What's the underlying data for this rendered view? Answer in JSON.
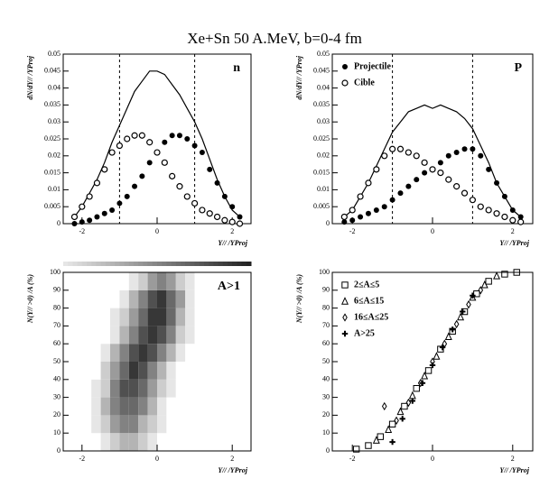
{
  "title": "Xe+Sn 50 A.MeV, b=0-4 fm",
  "chart_data": [
    {
      "type": "line",
      "label": "n",
      "xlabel": "Y// /YProj",
      "ylabel": "dN/dY// /YProj",
      "xlim": [
        -2.5,
        2.5
      ],
      "ylim": [
        0,
        0.05
      ],
      "xticks": [
        -2,
        0,
        2
      ],
      "yticks": [
        0,
        0.005,
        0.01,
        0.015,
        0.02,
        0.025,
        0.03,
        0.035,
        0.04,
        0.045,
        0.05
      ],
      "vlines": [
        -1,
        1
      ],
      "x": [
        -2.2,
        -2.0,
        -1.8,
        -1.6,
        -1.4,
        -1.2,
        -1.0,
        -0.8,
        -0.6,
        -0.4,
        -0.2,
        0,
        0.2,
        0.4,
        0.6,
        0.8,
        1.0,
        1.2,
        1.4,
        1.6,
        1.8,
        2.0,
        2.2
      ],
      "series": [
        {
          "style": "step",
          "color": "#000000",
          "values": [
            0.002,
            0.005,
            0.009,
            0.013,
            0.018,
            0.024,
            0.029,
            0.034,
            0.039,
            0.042,
            0.045,
            0.045,
            0.044,
            0.041,
            0.038,
            0.034,
            0.03,
            0.025,
            0.019,
            0.013,
            0.008,
            0.004,
            0.002
          ]
        },
        {
          "style": "filled-circle",
          "color": "#000000",
          "values": [
            0,
            0.0005,
            0.001,
            0.002,
            0.003,
            0.004,
            0.006,
            0.008,
            0.011,
            0.014,
            0.018,
            0.021,
            0.024,
            0.026,
            0.026,
            0.025,
            0.023,
            0.021,
            0.016,
            0.012,
            0.008,
            0.005,
            0.002
          ]
        },
        {
          "style": "open-circle",
          "color": "#000000",
          "values": [
            0.002,
            0.005,
            0.008,
            0.012,
            0.016,
            0.021,
            0.023,
            0.025,
            0.026,
            0.026,
            0.024,
            0.021,
            0.018,
            0.014,
            0.011,
            0.008,
            0.006,
            0.004,
            0.003,
            0.002,
            0.001,
            0.0005,
            0
          ]
        }
      ]
    },
    {
      "type": "line",
      "label": "P",
      "xlabel": "Y// /YProj",
      "ylabel": "dN/dY// /YProj",
      "xlim": [
        -2.5,
        2.5
      ],
      "ylim": [
        0,
        0.05
      ],
      "xticks": [
        -2,
        0,
        2
      ],
      "yticks": [
        0,
        0.005,
        0.01,
        0.015,
        0.02,
        0.025,
        0.03,
        0.035,
        0.04,
        0.045,
        0.05
      ],
      "vlines": [
        -1,
        1
      ],
      "x": [
        -2.2,
        -2.0,
        -1.8,
        -1.6,
        -1.4,
        -1.2,
        -1.0,
        -0.8,
        -0.6,
        -0.4,
        -0.2,
        0,
        0.2,
        0.4,
        0.6,
        0.8,
        1.0,
        1.2,
        1.4,
        1.6,
        1.8,
        2.0,
        2.2
      ],
      "series": [
        {
          "style": "step",
          "color": "#000000",
          "values": [
            0.002,
            0.004,
            0.008,
            0.012,
            0.017,
            0.022,
            0.027,
            0.03,
            0.033,
            0.034,
            0.035,
            0.034,
            0.035,
            0.034,
            0.033,
            0.031,
            0.028,
            0.023,
            0.018,
            0.012,
            0.008,
            0.004,
            0.002
          ]
        },
        {
          "name": "Projectile",
          "style": "filled-circle",
          "color": "#000000",
          "values": [
            0.0005,
            0.001,
            0.002,
            0.003,
            0.004,
            0.005,
            0.007,
            0.009,
            0.011,
            0.013,
            0.015,
            0.016,
            0.018,
            0.02,
            0.021,
            0.022,
            0.022,
            0.02,
            0.016,
            0.012,
            0.008,
            0.004,
            0.002
          ]
        },
        {
          "name": "Cible",
          "style": "open-circle",
          "color": "#000000",
          "values": [
            0.002,
            0.004,
            0.008,
            0.012,
            0.016,
            0.02,
            0.022,
            0.022,
            0.021,
            0.02,
            0.018,
            0.016,
            0.015,
            0.013,
            0.011,
            0.009,
            0.007,
            0.005,
            0.004,
            0.003,
            0.002,
            0.001,
            0.0005
          ]
        }
      ]
    },
    {
      "type": "heatmap",
      "label": "A>1",
      "xlabel": "Y// /YProj",
      "ylabel": "N(Y// >0) /A (%)",
      "xlim": [
        -2.5,
        2.5
      ],
      "ylim": [
        0,
        100
      ],
      "xticks": [
        -2,
        0,
        2
      ],
      "yticks": [
        0,
        10,
        20,
        30,
        40,
        50,
        60,
        70,
        80,
        90,
        100
      ],
      "xbins": [
        -1.75,
        -1.5,
        -1.25,
        -1.0,
        -0.75,
        -0.5,
        -0.25,
        0,
        0.25,
        0.5,
        0.75,
        1.0,
        1.25
      ],
      "ybins": [
        0,
        10,
        20,
        30,
        40,
        50,
        60,
        70,
        80,
        90,
        100
      ],
      "counts": [
        [
          0,
          1,
          2,
          3,
          3,
          2,
          1,
          0,
          0,
          0,
          0,
          0
        ],
        [
          1,
          2,
          4,
          5,
          5,
          3,
          2,
          1,
          0,
          0,
          0,
          0
        ],
        [
          1,
          3,
          5,
          6,
          6,
          5,
          3,
          1,
          0,
          0,
          0,
          0
        ],
        [
          1,
          2,
          5,
          7,
          7,
          6,
          4,
          2,
          1,
          0,
          0,
          0
        ],
        [
          0,
          2,
          4,
          6,
          8,
          7,
          5,
          3,
          1,
          0,
          0,
          0
        ],
        [
          0,
          1,
          3,
          5,
          7,
          8,
          7,
          5,
          3,
          1,
          0,
          0
        ],
        [
          0,
          0,
          1,
          3,
          5,
          7,
          8,
          7,
          5,
          2,
          1,
          0
        ],
        [
          0,
          0,
          1,
          2,
          4,
          6,
          8,
          8,
          6,
          3,
          1,
          0
        ],
        [
          0,
          0,
          0,
          1,
          3,
          5,
          7,
          8,
          6,
          4,
          1,
          0
        ],
        [
          0,
          0,
          0,
          0,
          1,
          2,
          4,
          5,
          4,
          2,
          1,
          0
        ]
      ]
    },
    {
      "type": "scatter",
      "xlabel": "Y// /YProj",
      "ylabel": "N(Y// >0) /A (%)",
      "xlim": [
        -2.5,
        2.5
      ],
      "ylim": [
        0,
        100
      ],
      "xticks": [
        -2,
        0,
        2
      ],
      "yticks": [
        0,
        10,
        20,
        30,
        40,
        50,
        60,
        70,
        80,
        90,
        100
      ],
      "series": [
        {
          "name": "2≤A≤5",
          "marker": "square",
          "color": "#000000",
          "x": [
            -1.9,
            -1.6,
            -1.3,
            -1.0,
            -0.7,
            -0.4,
            -0.1,
            0.2,
            0.5,
            0.8,
            1.1,
            1.4,
            1.8,
            2.1
          ],
          "values": [
            1,
            3,
            8,
            15,
            25,
            35,
            45,
            57,
            67,
            78,
            88,
            95,
            99,
            100
          ]
        },
        {
          "name": "6≤A≤15",
          "marker": "triangle",
          "color": "#000000",
          "x": [
            -1.4,
            -1.1,
            -0.8,
            -0.5,
            -0.2,
            0.1,
            0.4,
            0.7,
            1.0,
            1.3,
            1.6
          ],
          "values": [
            6,
            12,
            22,
            31,
            42,
            53,
            64,
            75,
            86,
            93,
            98
          ]
        },
        {
          "name": "16≤A≤25",
          "marker": "diamond",
          "color": "#000000",
          "x": [
            -1.2,
            -0.9,
            -0.6,
            -0.3,
            0,
            0.3,
            0.6,
            0.9,
            1.2
          ],
          "values": [
            25,
            17,
            27,
            38,
            50,
            60,
            71,
            82,
            90
          ]
        },
        {
          "name": "A>25",
          "marker": "cross",
          "color": "#000000",
          "x": [
            -1.0,
            -0.75,
            -0.5,
            -0.25,
            0.0,
            0.25,
            0.5,
            0.75,
            1.0
          ],
          "values": [
            5,
            18,
            28,
            38,
            48,
            58,
            68,
            78,
            87
          ]
        }
      ]
    }
  ]
}
